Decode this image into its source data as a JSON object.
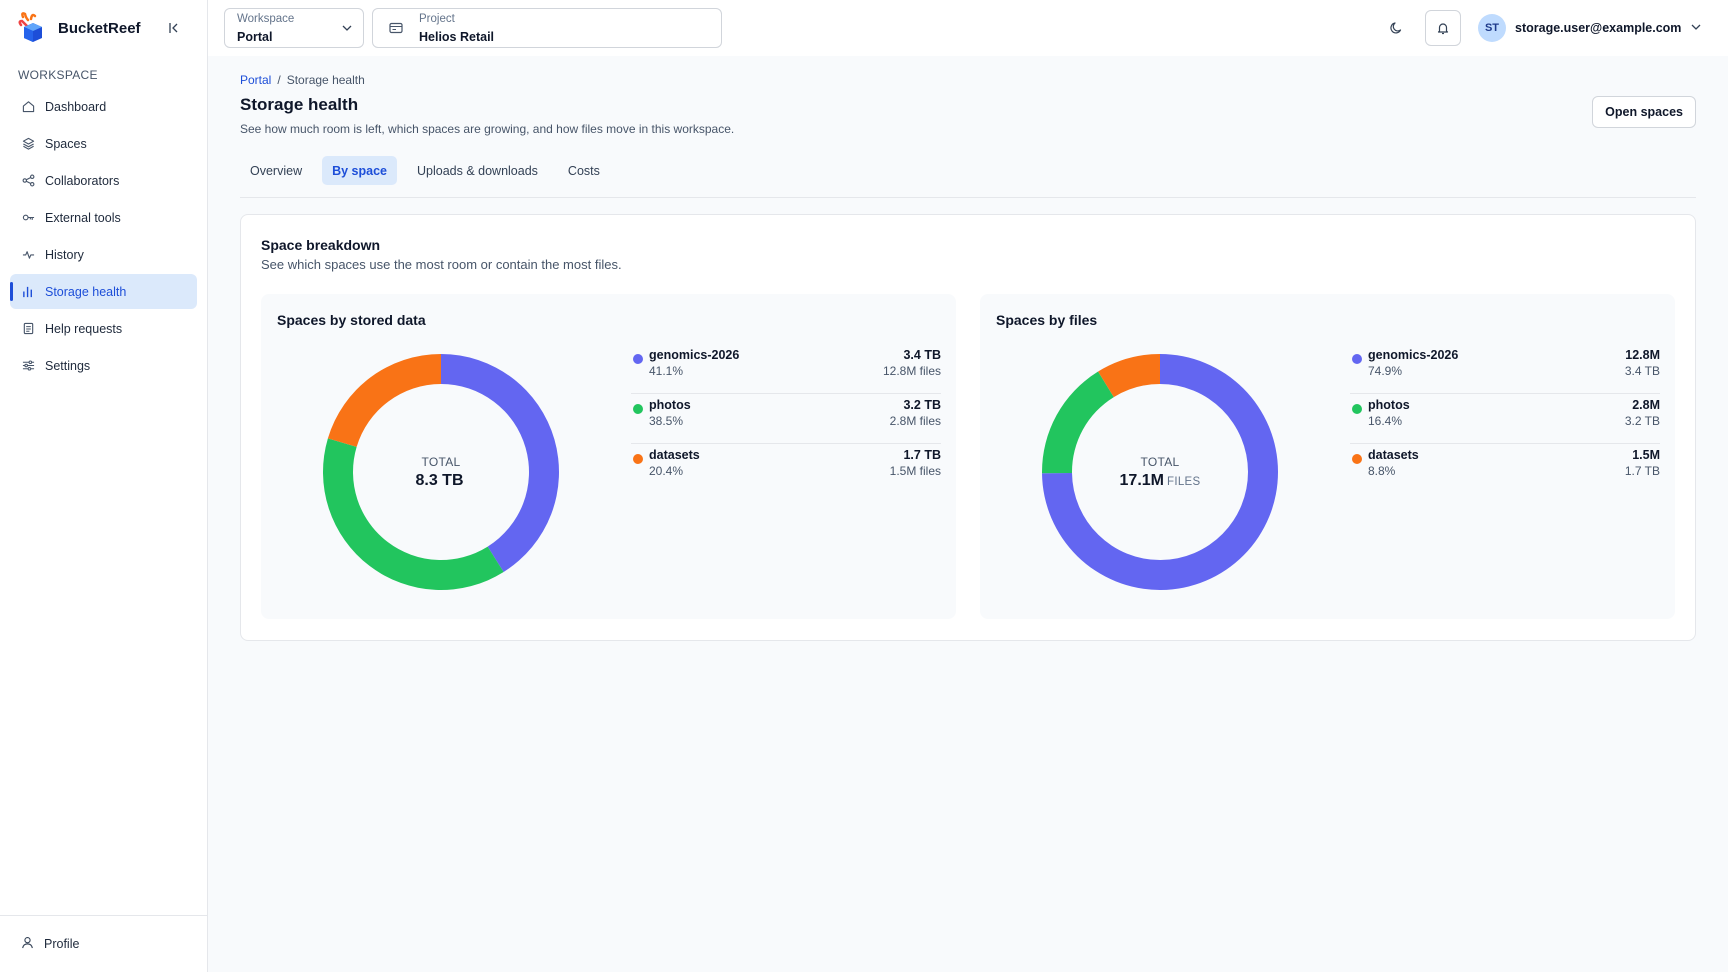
{
  "app": {
    "name": "BucketReef"
  },
  "sidebar": {
    "section_label": "WORKSPACE",
    "items": [
      {
        "label": "Dashboard",
        "icon": "home-icon"
      },
      {
        "label": "Spaces",
        "icon": "layers-icon"
      },
      {
        "label": "Collaborators",
        "icon": "share-icon"
      },
      {
        "label": "External tools",
        "icon": "key-icon"
      },
      {
        "label": "History",
        "icon": "activity-icon"
      },
      {
        "label": "Storage health",
        "icon": "bar-chart-icon",
        "active": true
      },
      {
        "label": "Help requests",
        "icon": "document-icon"
      },
      {
        "label": "Settings",
        "icon": "sliders-icon"
      }
    ],
    "footer": {
      "label": "Profile"
    }
  },
  "topbar": {
    "workspace": {
      "label": "Workspace",
      "value": "Portal"
    },
    "project": {
      "label": "Project",
      "value": "Helios Retail"
    },
    "user": {
      "initials": "ST",
      "email": "storage.user@example.com"
    }
  },
  "page": {
    "breadcrumb": {
      "root": "Portal",
      "separator": "/",
      "current": "Storage health"
    },
    "title": "Storage health",
    "subtitle": "See how much room is left, which spaces are growing, and how files move in this workspace.",
    "open_button": "Open spaces",
    "tabs": [
      "Overview",
      "By space",
      "Uploads & downloads",
      "Costs"
    ],
    "active_tab": 1
  },
  "breakdown": {
    "title": "Space breakdown",
    "subtitle": "See which spaces use the most room or contain the most files."
  },
  "colors": {
    "genomics-2026": "#6366f1",
    "photos": "#22c55e",
    "datasets": "#f97316"
  },
  "chart_data": [
    {
      "type": "pie",
      "title": "Spaces by stored data",
      "center_label": "TOTAL",
      "center_value": "8.3 TB",
      "center_unit": "",
      "categories": [
        "genomics-2026",
        "photos",
        "datasets"
      ],
      "values": [
        41.1,
        38.5,
        20.4
      ],
      "legend": [
        {
          "name": "genomics-2026",
          "pct": "41.1%",
          "value": "3.4 TB",
          "secondary": "12.8M files"
        },
        {
          "name": "photos",
          "pct": "38.5%",
          "value": "3.2 TB",
          "secondary": "2.8M files"
        },
        {
          "name": "datasets",
          "pct": "20.4%",
          "value": "1.7 TB",
          "secondary": "1.5M files"
        }
      ]
    },
    {
      "type": "pie",
      "title": "Spaces by files",
      "center_label": "TOTAL",
      "center_value": "17.1M",
      "center_unit": "FILES",
      "categories": [
        "genomics-2026",
        "photos",
        "datasets"
      ],
      "values": [
        74.9,
        16.4,
        8.8
      ],
      "legend": [
        {
          "name": "genomics-2026",
          "pct": "74.9%",
          "value": "12.8M",
          "secondary": "3.4 TB"
        },
        {
          "name": "photos",
          "pct": "16.4%",
          "value": "2.8M",
          "secondary": "3.2 TB"
        },
        {
          "name": "datasets",
          "pct": "8.8%",
          "value": "1.5M",
          "secondary": "1.7 TB"
        }
      ]
    }
  ]
}
